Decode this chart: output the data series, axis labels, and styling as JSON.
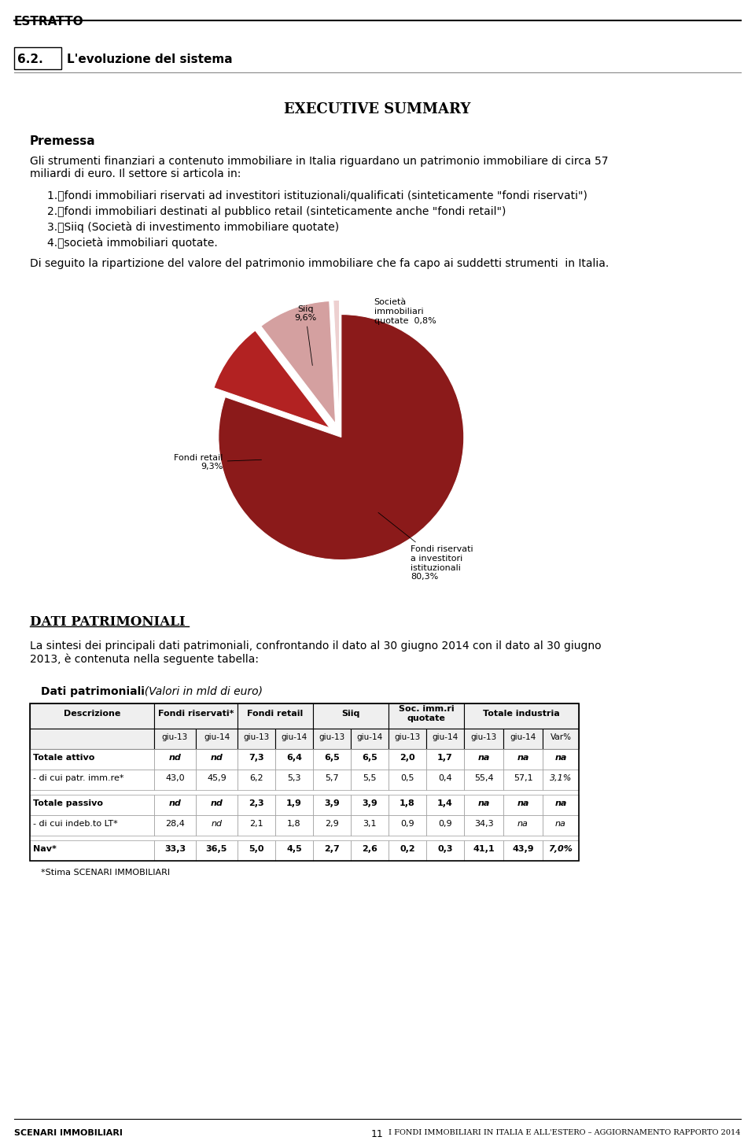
{
  "page_bg": "#ffffff",
  "header_text": "ESTRATTO",
  "section_num": "6.2.",
  "section_title": "L'evoluzione del sistema",
  "exec_summary_title": "EXECUTIVE SUMMARY",
  "premessa_title": "Premessa",
  "premessa_body": "Gli strumenti finanziari a contenuto immobiliare in Italia riguardano un patrimonio immobiliare di circa 57\nmiliardi di euro. Il settore si articola in:",
  "list_items": [
    "fondi immobiliari riservati ad investitori istituzionali/qualificati (sinteticamente \"fondi riservati\")",
    "fondi immobiliari destinati al pubblico retail (sinteticamente anche \"fondi retail\")",
    "Siiq (Società di investimento immobiliare quotate)",
    "società immobiliari quotate."
  ],
  "pie_intro": "Di seguito la ripartizione del valore del patrimonio immobiliare che fa capo ai suddetti strumenti  in Italia.",
  "pie_values": [
    80.3,
    9.3,
    9.6,
    0.8
  ],
  "pie_colors": [
    "#8B1A1A",
    "#B22222",
    "#D4A0A0",
    "#EDD0D0"
  ],
  "pie_explode": [
    0.02,
    0.1,
    0.1,
    0.1
  ],
  "dati_title": "DATI PATRIMONIALI",
  "dati_body": "La sintesi dei principali dati patrimoniali, confrontando il dato al 30 giugno 2014 con il dato al 30 giugno\n2013, è contenuta nella seguente tabella:",
  "table_title_bold": "Dati patrimoniali",
  "table_title_italic": "  (Valori in mld di euro)",
  "table_rows": [
    [
      "Totale attivo",
      "nd",
      "nd",
      "7,3",
      "6,4",
      "6,5",
      "6,5",
      "2,0",
      "1,7",
      "na",
      "na",
      "na"
    ],
    [
      "- di cui patr. imm.re*",
      "43,0",
      "45,9",
      "6,2",
      "5,3",
      "5,7",
      "5,5",
      "0,5",
      "0,4",
      "55,4",
      "57,1",
      "3,1%"
    ],
    [
      "Totale passivo",
      "nd",
      "nd",
      "2,3",
      "1,9",
      "3,9",
      "3,9",
      "1,8",
      "1,4",
      "na",
      "na",
      "na"
    ],
    [
      "- di cui indeb.to LT*",
      "28,4",
      "nd",
      "2,1",
      "1,8",
      "2,9",
      "3,1",
      "0,9",
      "0,9",
      "34,3",
      "na",
      "na"
    ],
    [
      "Nav*",
      "33,3",
      "36,5",
      "5,0",
      "4,5",
      "2,7",
      "2,6",
      "0,2",
      "0,3",
      "41,1",
      "43,9",
      "7,0%"
    ]
  ],
  "table_bold_rows": [
    0,
    2,
    4
  ],
  "footnote": "*Stima SCENARI IMMOBILIARI",
  "footer_left": "SCENARI IMMOBILIARI",
  "footer_center": "11",
  "footer_right": "I FONDI IMMOBILIARI IN ITALIA E ALL'ESTERO – AGGIORNAMENTO RAPPORTO 2014"
}
